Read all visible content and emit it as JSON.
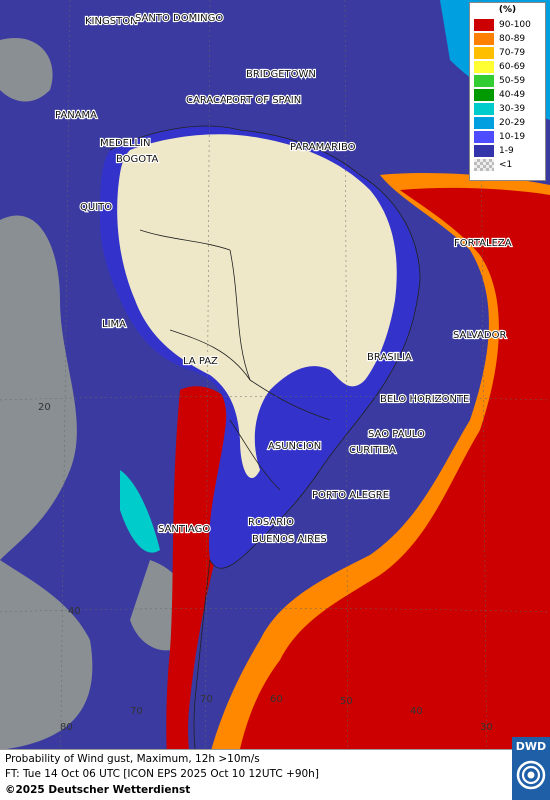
{
  "legend": {
    "unit": "(%)",
    "items": [
      {
        "label": "90-100",
        "color": "#cc0000"
      },
      {
        "label": "80-89",
        "color": "#ff7f00"
      },
      {
        "label": "70-79",
        "color": "#ffbf00"
      },
      {
        "label": "60-69",
        "color": "#ffff33"
      },
      {
        "label": "50-59",
        "color": "#33cc33"
      },
      {
        "label": "40-49",
        "color": "#009900"
      },
      {
        "label": "30-39",
        "color": "#00cccc"
      },
      {
        "label": "20-29",
        "color": "#00a0e0"
      },
      {
        "label": "10-19",
        "color": "#4d4dff"
      },
      {
        "label": "1-9",
        "color": "#3333aa"
      },
      {
        "label": "<1",
        "color": "checker"
      }
    ]
  },
  "cities": {
    "kingston": "KINGSTON",
    "santo_domingo": "SANTO DOMINGO",
    "bridgetown": "BRIDGETOWN",
    "port_of_spain": "PORT OF SPAIN",
    "caracas": "CARACAS",
    "panama": "PANAMA",
    "medellin": "MEDELLIN",
    "bogota": "BOGOTA",
    "paramaribo": "PARAMARIBO",
    "quito": "QUITO",
    "fortaleza": "FORTALEZA",
    "lima": "LIMA",
    "salvador": "SALVADOR",
    "la_paz": "LA PAZ",
    "brasilia": "BRASILIA",
    "belo_horizonte": "BELO HORIZONTE",
    "sao_paulo": "SAO PAULO",
    "curitiba": "CURITIBA",
    "asuncion": "ASUNCION",
    "porto_alegre": "PORTO ALEGRE",
    "santiago": "SANTIAGO",
    "rosario": "ROSARIO",
    "buenos_aires": "BUENOS AIRES"
  },
  "grid_labels": {
    "lat_20": "20",
    "lat_40": "40",
    "lon_80": "80",
    "lon_70": "70",
    "lon_60": "60",
    "lon_50": "50",
    "lon_40": "40",
    "lon_30": "30"
  },
  "footer": {
    "line1": "Probability of Wind gust, Maximum, 12h >10m/s",
    "line2": "FT: Tue 14 Oct 06 UTC [ICON EPS 2025 Oct 10 12UTC +90h]",
    "line3": "©2025 Deutscher Wetterdienst"
  },
  "logo": {
    "text": "DWD",
    "color": "#1f5fa8"
  },
  "colors": {
    "ocean_low": "#3a3aa0",
    "land_none": "#efe8c8",
    "grey_sea": "#8a8f94"
  }
}
